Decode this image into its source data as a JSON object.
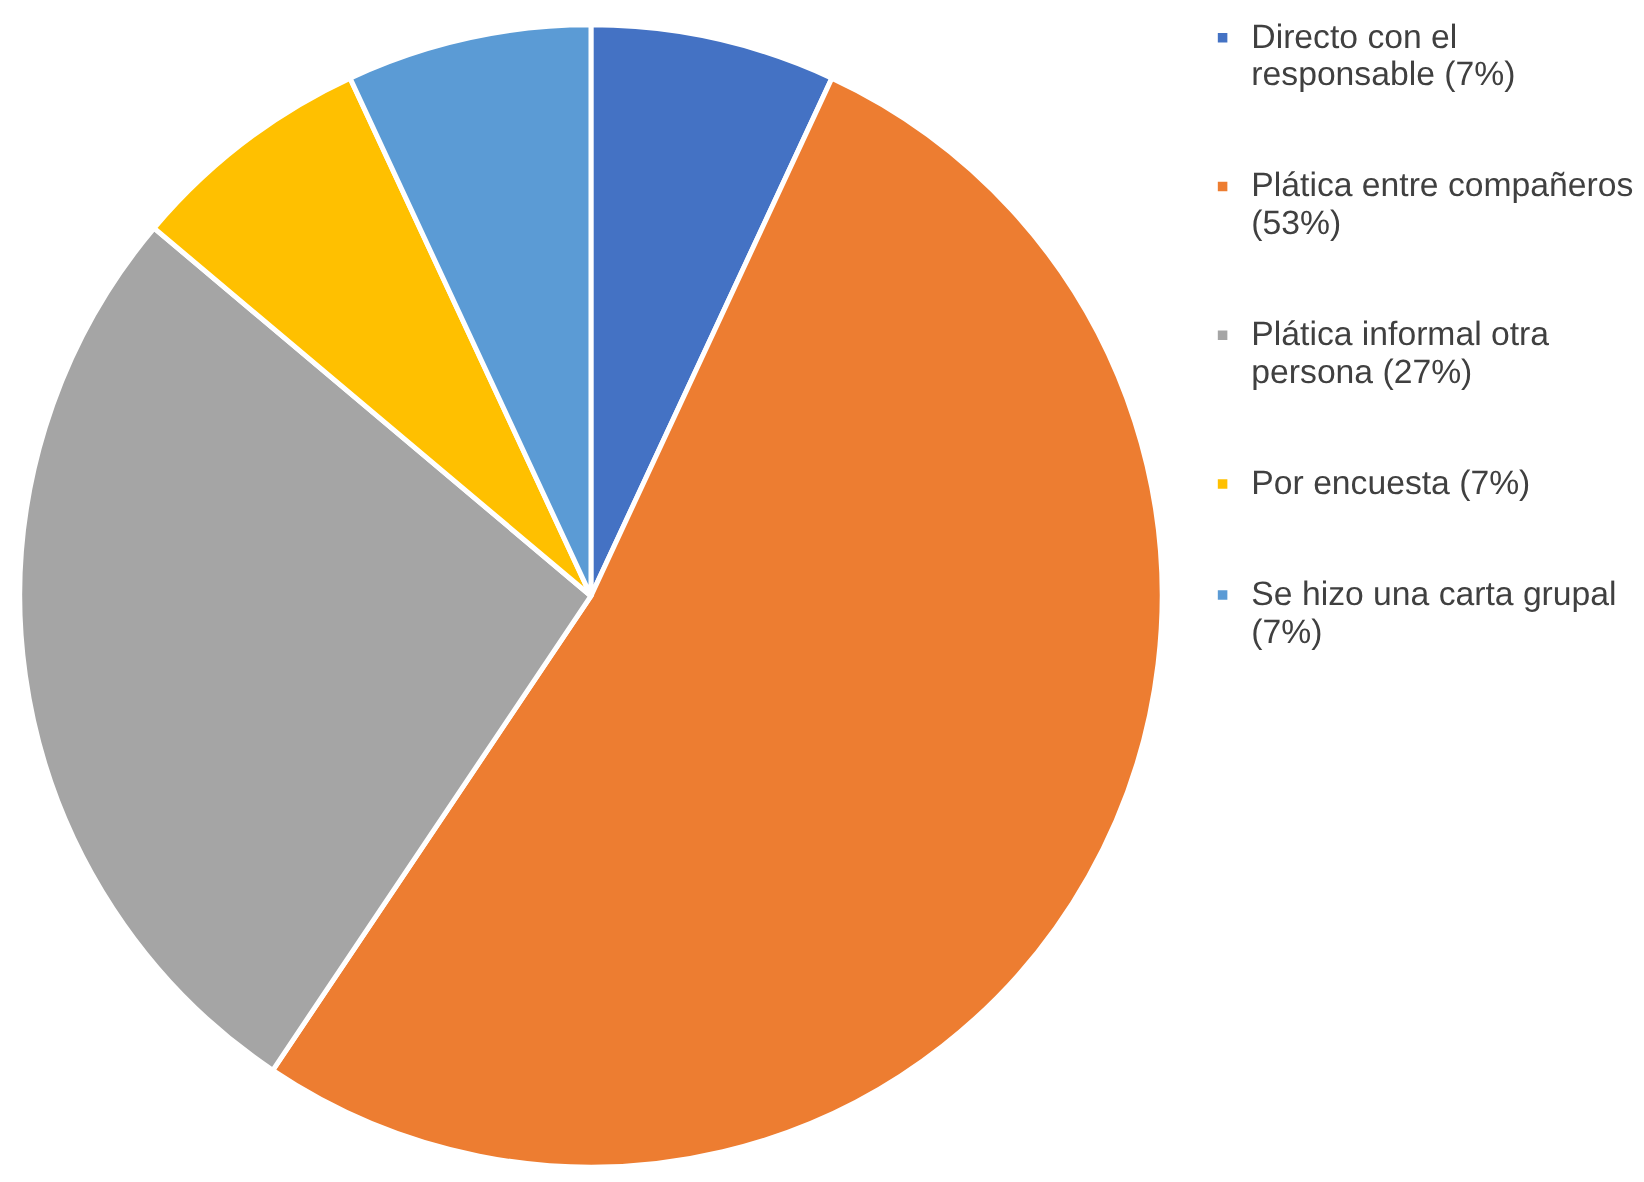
{
  "chart_data": {
    "type": "pie",
    "categories": [
      "Directo con el responsable (7%)",
      "Plática entre compañeros (53%)",
      "Plática informal otra persona (27%)",
      "Por encuesta (7%)",
      "Se hizo una carta grupal (7%)"
    ],
    "values": [
      7,
      53,
      27,
      7,
      7
    ],
    "colors": [
      "#4472c4",
      "#ed7d31",
      "#a5a5a5",
      "#ffc000",
      "#5b9bd5"
    ],
    "legend": "right"
  }
}
